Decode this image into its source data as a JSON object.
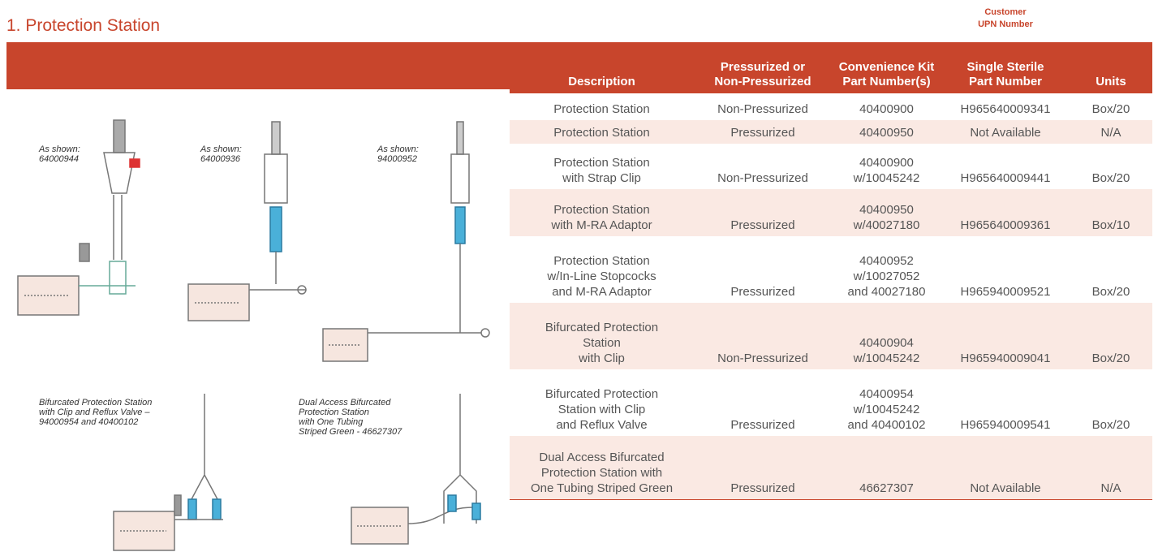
{
  "title": "1. Protection Station",
  "customer_label": [
    "Customer",
    "UPN Number"
  ],
  "table": {
    "headers": [
      [
        "Description"
      ],
      [
        "Pressurized or",
        "Non-Pressurized"
      ],
      [
        "Convenience Kit",
        "Part Number(s)"
      ],
      [
        "Single Sterile",
        "Part Number"
      ],
      [
        "Units"
      ]
    ],
    "rows": [
      [
        [
          "Protection Station"
        ],
        [
          "Non-Pressurized"
        ],
        [
          "40400900"
        ],
        [
          "H965640009341"
        ],
        [
          "Box/20"
        ]
      ],
      [
        [
          "Protection Station"
        ],
        [
          "Pressurized"
        ],
        [
          "40400950"
        ],
        [
          "Not Available"
        ],
        [
          "N/A"
        ]
      ],
      [
        [
          "Protection Station",
          "with Strap Clip"
        ],
        [
          "Non-Pressurized"
        ],
        [
          "40400900",
          "w/10045242"
        ],
        [
          "H965640009441"
        ],
        [
          "Box/20"
        ]
      ],
      [
        [
          "Protection Station",
          "with M-RA Adaptor"
        ],
        [
          "Pressurized"
        ],
        [
          "40400950",
          "w/40027180"
        ],
        [
          "H965640009361"
        ],
        [
          "Box/10"
        ]
      ],
      [
        [
          "Protection Station",
          "w/In-Line Stopcocks",
          "and M-RA Adaptor"
        ],
        [
          "Pressurized"
        ],
        [
          "40400952",
          "w/10027052",
          "and 40027180"
        ],
        [
          "H965940009521"
        ],
        [
          "Box/20"
        ]
      ],
      [
        [
          "Bifurcated Protection",
          "Station",
          "with Clip"
        ],
        [
          "Non-Pressurized"
        ],
        [
          "40400904",
          "w/10045242"
        ],
        [
          "H965940009041"
        ],
        [
          "Box/20"
        ]
      ],
      [
        [
          "Bifurcated Protection",
          "Station with Clip",
          "and Reflux Valve"
        ],
        [
          "Pressurized"
        ],
        [
          "40400954",
          "w/10045242",
          "and 40400102"
        ],
        [
          "H965940009541"
        ],
        [
          "Box/20"
        ]
      ],
      [
        [
          "Dual Access Bifurcated",
          "Protection Station with",
          "One Tubing Striped Green"
        ],
        [
          "Pressurized"
        ],
        [
          "46627307"
        ],
        [
          "Not Available"
        ],
        [
          "N/A"
        ]
      ]
    ]
  },
  "captions": [
    [
      "As shown:",
      "64000944"
    ],
    [
      "As shown:",
      "64000936"
    ],
    [
      "As shown:",
      "94000952"
    ],
    [
      "Bifurcated Protection Station",
      "with Clip and Reflux Valve –",
      "94000954 and 40400102"
    ],
    [
      "Dual Access Bifurcated",
      "Protection Station",
      "with One Tubing",
      "Striped Green - 46627307"
    ]
  ]
}
